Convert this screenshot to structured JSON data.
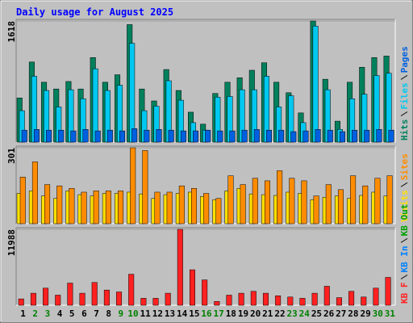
{
  "chart_data": [
    {
      "type": "bar",
      "title": "Daily usage for August 2025",
      "ylim": [
        0,
        1618
      ],
      "yticks": [
        1618
      ],
      "series": [
        {
          "name": "Hits",
          "color": "#00805c",
          "values": [
            590,
            1070,
            800,
            710,
            810,
            710,
            1130,
            800,
            900,
            1570,
            710,
            550,
            970,
            690,
            400,
            240,
            650,
            800,
            860,
            960,
            1060,
            800,
            660,
            390,
            1618,
            840,
            280,
            800,
            1000,
            1130,
            1150
          ]
        },
        {
          "name": "Files",
          "color": "#00c8f0",
          "values": [
            420,
            880,
            690,
            470,
            700,
            580,
            980,
            690,
            760,
            1320,
            420,
            480,
            820,
            560,
            260,
            160,
            600,
            610,
            700,
            700,
            880,
            470,
            620,
            260,
            1550,
            700,
            170,
            580,
            640,
            890,
            920
          ]
        },
        {
          "name": "Pages",
          "color": "#0060e0",
          "values": [
            160,
            170,
            160,
            160,
            150,
            170,
            150,
            160,
            150,
            180,
            160,
            170,
            160,
            150,
            150,
            160,
            150,
            150,
            160,
            170,
            160,
            160,
            140,
            150,
            170,
            160,
            140,
            160,
            160,
            170,
            160
          ]
        }
      ]
    },
    {
      "type": "bar",
      "ylim": [
        0,
        301
      ],
      "yticks": [
        301
      ],
      "series": [
        {
          "name": "Visits",
          "color": "#ffe000",
          "values": [
            120,
            130,
            110,
            100,
            130,
            115,
            110,
            120,
            120,
            125,
            118,
            100,
            115,
            120,
            125,
            108,
            95,
            130,
            140,
            118,
            115,
            112,
            125,
            120,
            95,
            105,
            110,
            100,
            112,
            125,
            110
          ]
        },
        {
          "name": "Sites",
          "color": "#ff8c00",
          "values": [
            185,
            245,
            155,
            150,
            140,
            125,
            130,
            130,
            130,
            301,
            290,
            125,
            125,
            150,
            140,
            120,
            100,
            190,
            155,
            180,
            170,
            210,
            180,
            170,
            110,
            155,
            135,
            190,
            150,
            180,
            190
          ]
        }
      ]
    },
    {
      "type": "bar",
      "ylim": [
        0,
        11988
      ],
      "yticks": [
        11988
      ],
      "categories": [
        "1",
        "2",
        "3",
        "4",
        "5",
        "6",
        "7",
        "8",
        "9",
        "10",
        "11",
        "12",
        "13",
        "14",
        "15",
        "16",
        "17",
        "18",
        "19",
        "20",
        "21",
        "22",
        "23",
        "24",
        "25",
        "26",
        "27",
        "28",
        "29",
        "30",
        "31"
      ],
      "category_colors": [
        "#000000",
        "#008000",
        "#008000",
        "#000000",
        "#000000",
        "#000000",
        "#000000",
        "#000000",
        "#008000",
        "#008000",
        "#000000",
        "#000000",
        "#000000",
        "#000000",
        "#000000",
        "#008000",
        "#008000",
        "#000000",
        "#000000",
        "#000000",
        "#000000",
        "#000000",
        "#008000",
        "#008000",
        "#000000",
        "#000000",
        "#000000",
        "#000000",
        "#000000",
        "#008000",
        "#008000"
      ],
      "series": [
        {
          "name": "KB F",
          "color": "#ff2020",
          "values": [
            1000,
            1900,
            2700,
            1600,
            3500,
            1900,
            3600,
            2400,
            2100,
            4900,
            1100,
            1100,
            1900,
            11988,
            5600,
            4000,
            600,
            1600,
            1900,
            2200,
            1900,
            1500,
            1300,
            1100,
            1900,
            3000,
            1200,
            2200,
            1300,
            2700,
            4400
          ]
        }
      ],
      "extra_legend": [
        {
          "name": "KB In",
          "color": "#0080ff"
        },
        {
          "name": "KB Out",
          "color": "#00a000"
        }
      ]
    }
  ]
}
